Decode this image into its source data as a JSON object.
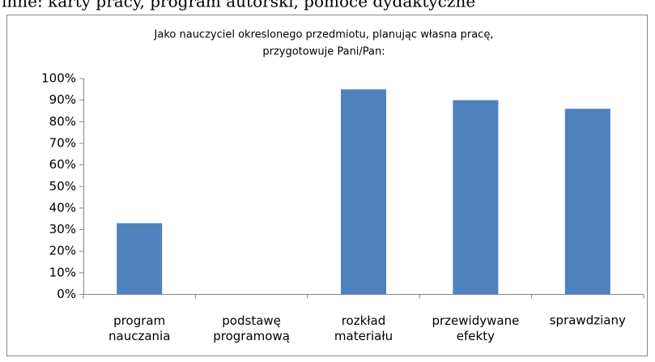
{
  "header": {
    "text": "inne: karty pracy, program autorski, pomoce dydaktyczne"
  },
  "chart_data": {
    "type": "bar",
    "title": [
      "Jako nauczyciel okreslonego przedmiotu, planując własna pracę,",
      "przygotowuje Pani/Pan:"
    ],
    "categories": [
      "program nauczania",
      "podstawę programową",
      "rozkład materiału",
      "przewidywane efekty",
      "sprawdziany"
    ],
    "values": [
      33,
      0,
      95,
      90,
      86
    ],
    "color": "#4f81bd",
    "ylim": [
      0,
      100
    ],
    "yticks": [
      {
        "value": 0,
        "label": "0%"
      },
      {
        "value": 10,
        "label": "10%"
      },
      {
        "value": 20,
        "label": "20%"
      },
      {
        "value": 30,
        "label": "30%"
      },
      {
        "value": 40,
        "label": "40%"
      },
      {
        "value": 50,
        "label": "50%"
      },
      {
        "value": 60,
        "label": "60%"
      },
      {
        "value": 70,
        "label": "70%"
      },
      {
        "value": 80,
        "label": "80%"
      },
      {
        "value": 90,
        "label": "90%"
      },
      {
        "value": 100,
        "label": "100%"
      }
    ],
    "grid": false
  }
}
